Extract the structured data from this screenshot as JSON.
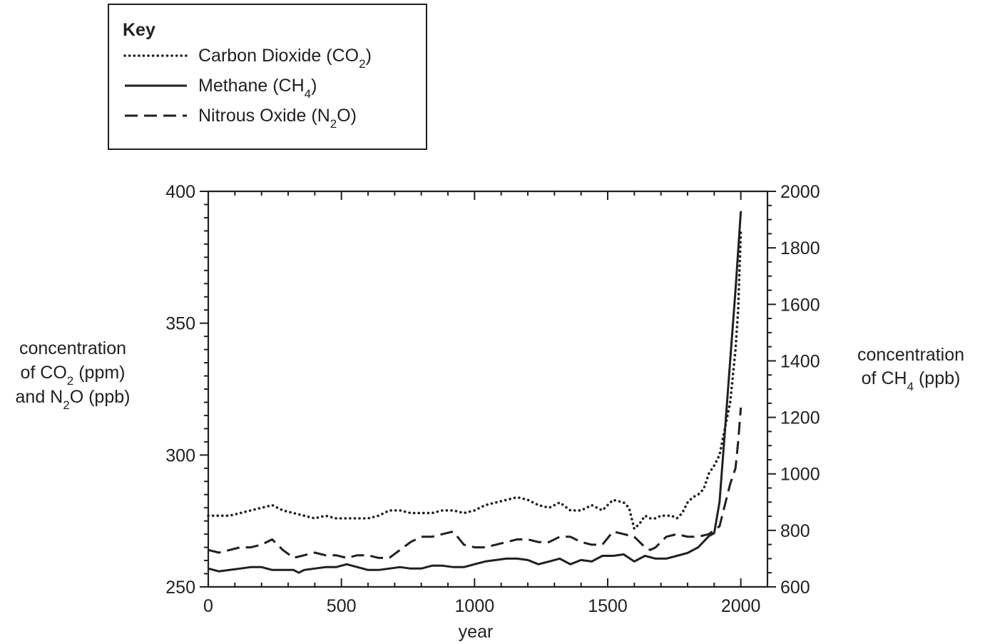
{
  "chart_data": {
    "type": "line",
    "legend": {
      "title": "Key",
      "placement": "top-left",
      "entries": [
        {
          "series": 0,
          "text": "Carbon Dioxide (CO",
          "sub": "2",
          "tail": ")",
          "style": "dotted"
        },
        {
          "series": 1,
          "text": "Methane (CH",
          "sub": "4",
          "tail": ")",
          "style": "solid"
        },
        {
          "series": 2,
          "text": "Nitrous Oxide (N",
          "sub": "2",
          "tail": "O)",
          "style": "dashed"
        }
      ]
    },
    "xlabel": "year",
    "x_range": [
      0,
      2100
    ],
    "x_ticks": [
      0,
      500,
      1000,
      1500,
      2000
    ],
    "left_axis": {
      "range": [
        250,
        400
      ],
      "ticks": [
        250,
        300,
        350,
        400
      ],
      "label_lines": [
        {
          "text": "concentration"
        },
        {
          "text": "of CO",
          "sub": "2",
          "tail": " (ppm)"
        },
        {
          "text": "and N",
          "sub": "2",
          "tail": "O (ppb)"
        }
      ]
    },
    "right_axis": {
      "range": [
        600,
        2000
      ],
      "ticks": [
        600,
        800,
        1000,
        1200,
        1400,
        1600,
        1800,
        2000
      ],
      "label_lines": [
        {
          "text": "concentration"
        },
        {
          "text": "of CH",
          "sub": "4",
          "tail": " (ppb)"
        }
      ]
    },
    "grid": false,
    "series": [
      {
        "key": "co2",
        "axis": "left",
        "style": "dotted",
        "x": [
          0,
          40,
          80,
          120,
          160,
          200,
          240,
          280,
          320,
          360,
          400,
          440,
          480,
          520,
          560,
          600,
          640,
          680,
          720,
          760,
          800,
          840,
          880,
          920,
          960,
          1000,
          1040,
          1080,
          1120,
          1160,
          1200,
          1240,
          1280,
          1320,
          1360,
          1400,
          1440,
          1480,
          1520,
          1560,
          1580,
          1600,
          1620,
          1640,
          1660,
          1680,
          1700,
          1720,
          1740,
          1760,
          1780,
          1800,
          1820,
          1840,
          1860,
          1880,
          1900,
          1920,
          1940,
          1960,
          1970,
          1980,
          1990,
          2000
        ],
        "y": [
          277,
          277,
          277,
          278,
          279,
          280,
          281,
          279,
          278,
          277,
          276,
          277,
          276,
          276,
          276,
          276,
          277,
          279,
          279,
          278,
          278,
          278,
          279,
          279,
          278,
          279,
          281,
          282,
          283,
          284,
          283,
          281,
          280,
          282,
          279,
          279,
          281,
          279,
          283,
          282,
          280,
          272,
          274,
          277,
          276,
          276,
          277,
          277,
          277,
          276,
          278,
          282,
          284,
          285,
          287,
          293,
          296,
          300,
          310,
          320,
          330,
          340,
          355,
          385
        ]
      },
      {
        "key": "ch4",
        "axis": "right",
        "style": "solid",
        "x": [
          0,
          40,
          80,
          120,
          160,
          200,
          240,
          280,
          320,
          340,
          360,
          400,
          440,
          480,
          520,
          560,
          600,
          640,
          680,
          720,
          760,
          800,
          840,
          880,
          920,
          960,
          1000,
          1040,
          1080,
          1120,
          1160,
          1200,
          1240,
          1280,
          1320,
          1360,
          1400,
          1440,
          1480,
          1520,
          1560,
          1600,
          1640,
          1680,
          1720,
          1760,
          1800,
          1840,
          1880,
          1900,
          1920,
          1940,
          1960,
          1980,
          2000
        ],
        "y": [
          665,
          655,
          660,
          665,
          670,
          670,
          660,
          660,
          660,
          650,
          660,
          665,
          670,
          670,
          680,
          670,
          660,
          660,
          665,
          670,
          665,
          665,
          675,
          675,
          670,
          670,
          680,
          690,
          695,
          700,
          700,
          695,
          680,
          690,
          700,
          680,
          695,
          690,
          710,
          710,
          715,
          690,
          710,
          700,
          700,
          710,
          720,
          740,
          780,
          790,
          900,
          1150,
          1400,
          1650,
          1930
        ]
      },
      {
        "key": "n2o",
        "axis": "left",
        "style": "dashed",
        "x": [
          0,
          40,
          80,
          120,
          160,
          200,
          240,
          280,
          320,
          360,
          400,
          440,
          480,
          520,
          560,
          600,
          640,
          680,
          720,
          760,
          800,
          840,
          880,
          920,
          960,
          1000,
          1040,
          1080,
          1120,
          1160,
          1200,
          1240,
          1280,
          1320,
          1360,
          1400,
          1440,
          1480,
          1520,
          1560,
          1600,
          1640,
          1660,
          1680,
          1720,
          1760,
          1800,
          1840,
          1880,
          1920,
          1960,
          1980,
          1990,
          2000
        ],
        "y": [
          264,
          263,
          264,
          265,
          265,
          266,
          268,
          264,
          261,
          262,
          263,
          262,
          262,
          261,
          262,
          262,
          261,
          261,
          264,
          267,
          269,
          269,
          270,
          271,
          266,
          265,
          265,
          266,
          267,
          268,
          268,
          267,
          267,
          269,
          269,
          267,
          266,
          266,
          271,
          270,
          269,
          265,
          264,
          265,
          269,
          270,
          269,
          269,
          270,
          273,
          289,
          295,
          305,
          318
        ]
      }
    ]
  }
}
